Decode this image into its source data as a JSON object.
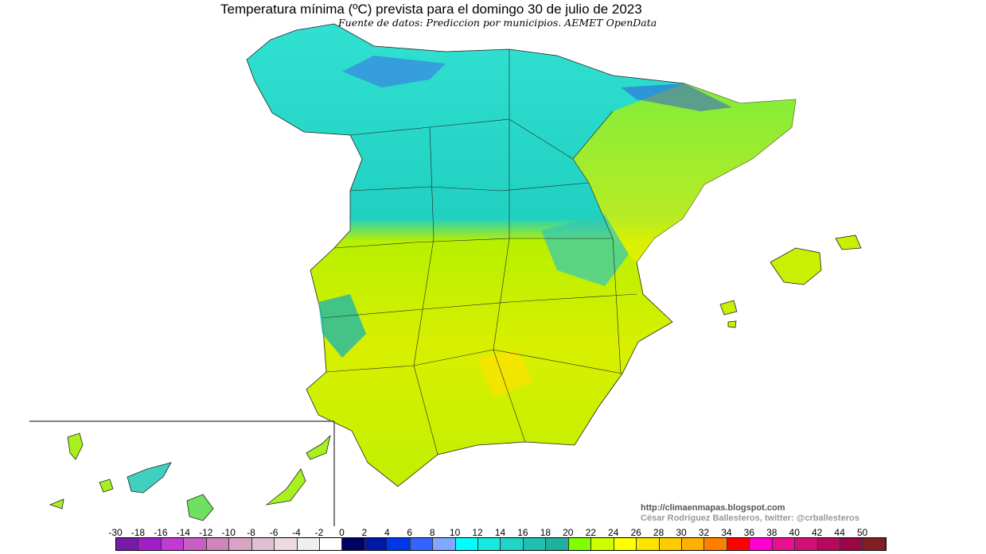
{
  "header": {
    "title": "Temperatura mínima (ºC) prevista para el domingo 30 de julio de 2023",
    "subtitle": "Fuente de datos: Prediccion por municipios. AEMET OpenData"
  },
  "credits": {
    "url": "http://climaenmapas.blogspot.com",
    "author": "César Rodríguez Ballesteros, twitter: @crballesteros"
  },
  "legend": {
    "labels": [
      "-30",
      "-18",
      "-16",
      "-14",
      "-12",
      "-10",
      "-8",
      "-6",
      "-4",
      "-2",
      "0",
      "2",
      "4",
      "6",
      "8",
      "10",
      "12",
      "14",
      "16",
      "18",
      "20",
      "22",
      "24",
      "26",
      "28",
      "30",
      "32",
      "34",
      "36",
      "38",
      "40",
      "42",
      "44",
      "50"
    ],
    "colors": [
      "#7a1aa8",
      "#a020c8",
      "#c03cd0",
      "#c85ec4",
      "#d084bc",
      "#d8a4c4",
      "#e0c0d0",
      "#eadce2",
      "#efefef",
      "#ffffff",
      "#00005e",
      "#0018a8",
      "#0038e8",
      "#3464ff",
      "#80a8ff",
      "#00ffff",
      "#18e8e0",
      "#20d4c8",
      "#20c0b0",
      "#20b09c",
      "#80ff00",
      "#d0ff00",
      "#ffff00",
      "#ffe400",
      "#ffcc00",
      "#ffb000",
      "#ff8000",
      "#ff0000",
      "#ff00d0",
      "#e81090",
      "#d01074",
      "#b8085c",
      "#980848",
      "#802020"
    ]
  }
}
